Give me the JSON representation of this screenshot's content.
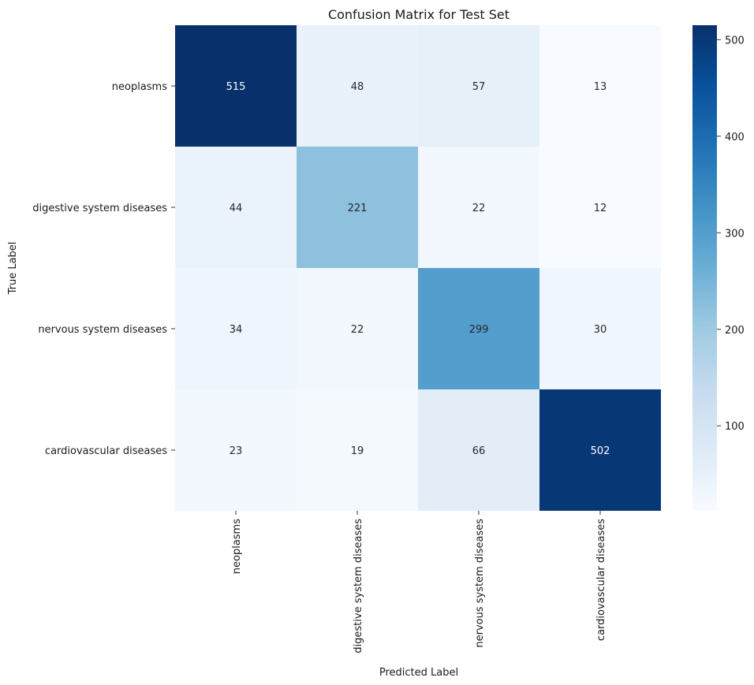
{
  "chart_data": {
    "type": "heatmap",
    "title": "Confusion Matrix for Test Set",
    "xlabel": "Predicted Label",
    "ylabel": "True Label",
    "row_labels": [
      "neoplasms",
      "digestive system diseases",
      "nervous system diseases",
      "cardiovascular diseases"
    ],
    "col_labels": [
      "neoplasms",
      "digestive system diseases",
      "nervous system diseases",
      "cardiovascular diseases"
    ],
    "values": [
      [
        515,
        48,
        57,
        13
      ],
      [
        44,
        221,
        22,
        12
      ],
      [
        34,
        22,
        299,
        30
      ],
      [
        23,
        19,
        66,
        502
      ]
    ],
    "colormap": "Blues",
    "color_range": [
      12,
      515
    ],
    "colorbar_ticks": [
      100,
      200,
      300,
      400,
      500
    ],
    "colorbar_tick_labels": [
      "100",
      "200",
      "300",
      "400",
      "500"
    ]
  }
}
